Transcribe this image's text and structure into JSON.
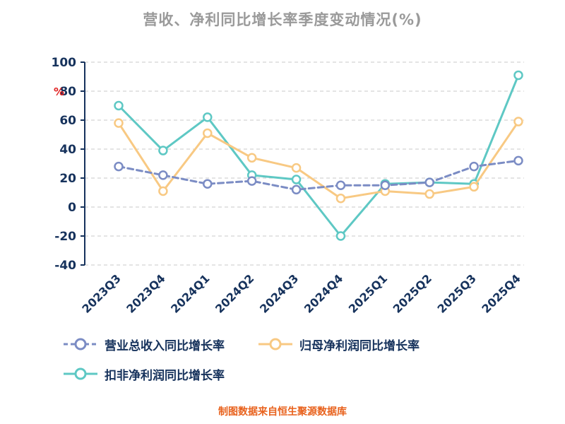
{
  "title": "营收、净利同比增长率季度变动情况(%)",
  "footer": "制图数据来自恒生聚源数据库",
  "colors": {
    "revenue": "#7b8cc4",
    "net_profit": "#f8c983",
    "non_recurring": "#5ec8c4",
    "grid": "#c9c9c9",
    "axis": "#16325c",
    "title": "#9a9a9a",
    "footer": "#e8611c",
    "unit": "#e02020",
    "background": "#ffffff"
  },
  "chart_data": {
    "type": "line",
    "title": "营收、净利同比增长率季度变动情况(%)",
    "categories": [
      "2023Q3",
      "2023Q4",
      "2024Q1",
      "2024Q2",
      "2024Q3",
      "2024Q4",
      "2025Q1",
      "2025Q2",
      "2025Q3",
      "2025Q4"
    ],
    "series": [
      {
        "name": "营业总收入同比增长率",
        "style": "dashed",
        "color_key": "revenue",
        "values": [
          28,
          22,
          16,
          18,
          12,
          15,
          15,
          17,
          28,
          32
        ]
      },
      {
        "name": "归母净利润同比增长率",
        "style": "solid",
        "color_key": "net_profit",
        "values": [
          58,
          11,
          51,
          34,
          27,
          6,
          11,
          9,
          14,
          59
        ]
      },
      {
        "name": "扣非净利润同比增长率",
        "style": "solid",
        "color_key": "non_recurring",
        "values": [
          70,
          39,
          62,
          22,
          19,
          -20,
          16,
          17,
          16,
          91
        ]
      }
    ],
    "ylabel": "%",
    "ylim": [
      -40,
      100
    ],
    "yticks": [
      -40,
      -20,
      0,
      20,
      40,
      60,
      80,
      100
    ],
    "grid": true,
    "legend_position": "bottom"
  }
}
